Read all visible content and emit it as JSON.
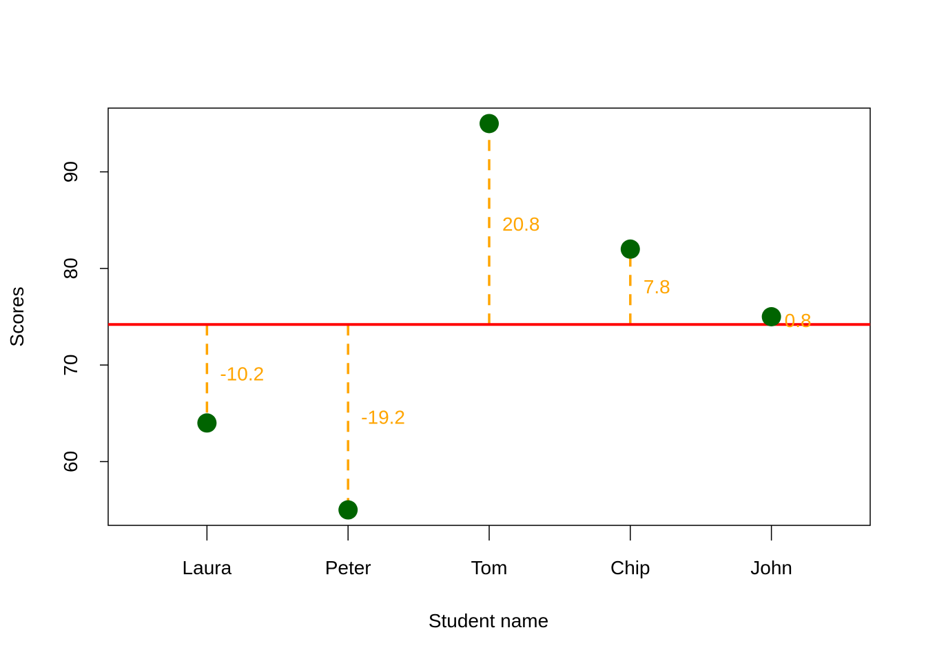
{
  "chart_data": {
    "type": "scatter",
    "xlabel": "Student name",
    "ylabel": "Scores",
    "categories": [
      "Laura",
      "Peter",
      "Tom",
      "Chip",
      "John"
    ],
    "values": [
      64,
      55,
      95,
      82,
      75
    ],
    "mean": 74.2,
    "deviation_labels": [
      "-10.2",
      "-19.2",
      "20.8",
      "7.8",
      "0.8"
    ],
    "y_ticks": [
      60,
      70,
      80,
      90
    ],
    "ylim": [
      53.4,
      96.6
    ],
    "xlim": [
      0.3,
      5.7
    ],
    "grid": false,
    "colors": {
      "points": "#006400",
      "mean_line": "#ff0000",
      "deviation": "#ffa500",
      "axis": "#000000"
    }
  }
}
